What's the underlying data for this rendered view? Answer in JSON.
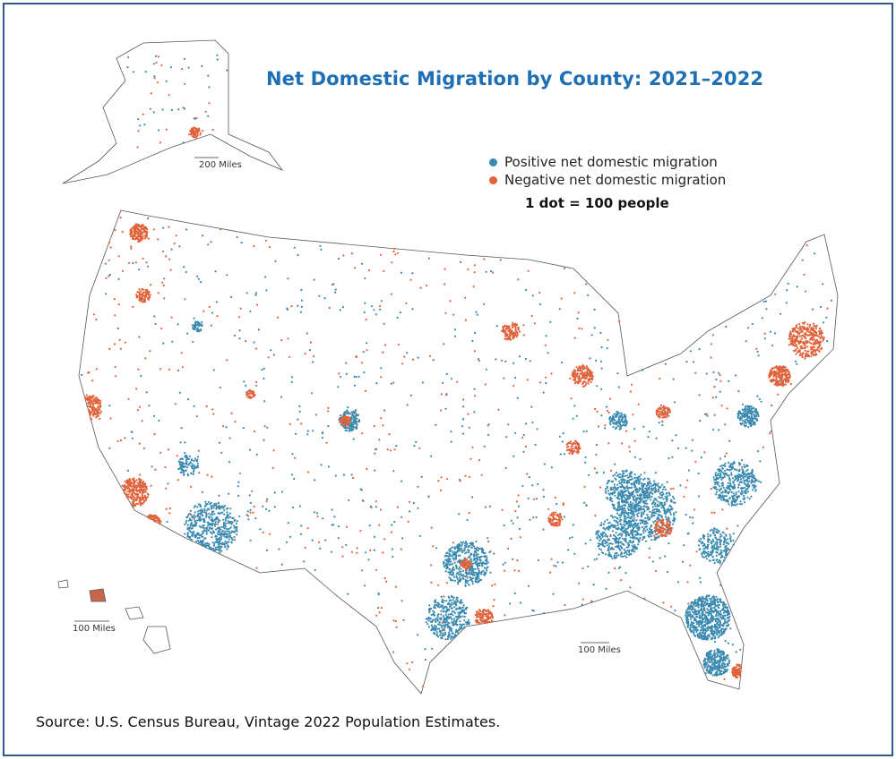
{
  "title": "Net Domestic Migration by County: 2021–2022",
  "legend": {
    "items": [
      {
        "label": "Positive net domestic migration",
        "color": "#3a8ab0"
      },
      {
        "label": "Negative net domestic migration",
        "color": "#e0623a"
      }
    ],
    "dot_value": "1 dot = 100 people"
  },
  "scale_bars": {
    "alaska": "200 Miles",
    "hawaii": "100 Miles",
    "conus": "100 Miles"
  },
  "source": "Source: U.S. Census Bureau, Vintage 2022 Population Estimates."
}
